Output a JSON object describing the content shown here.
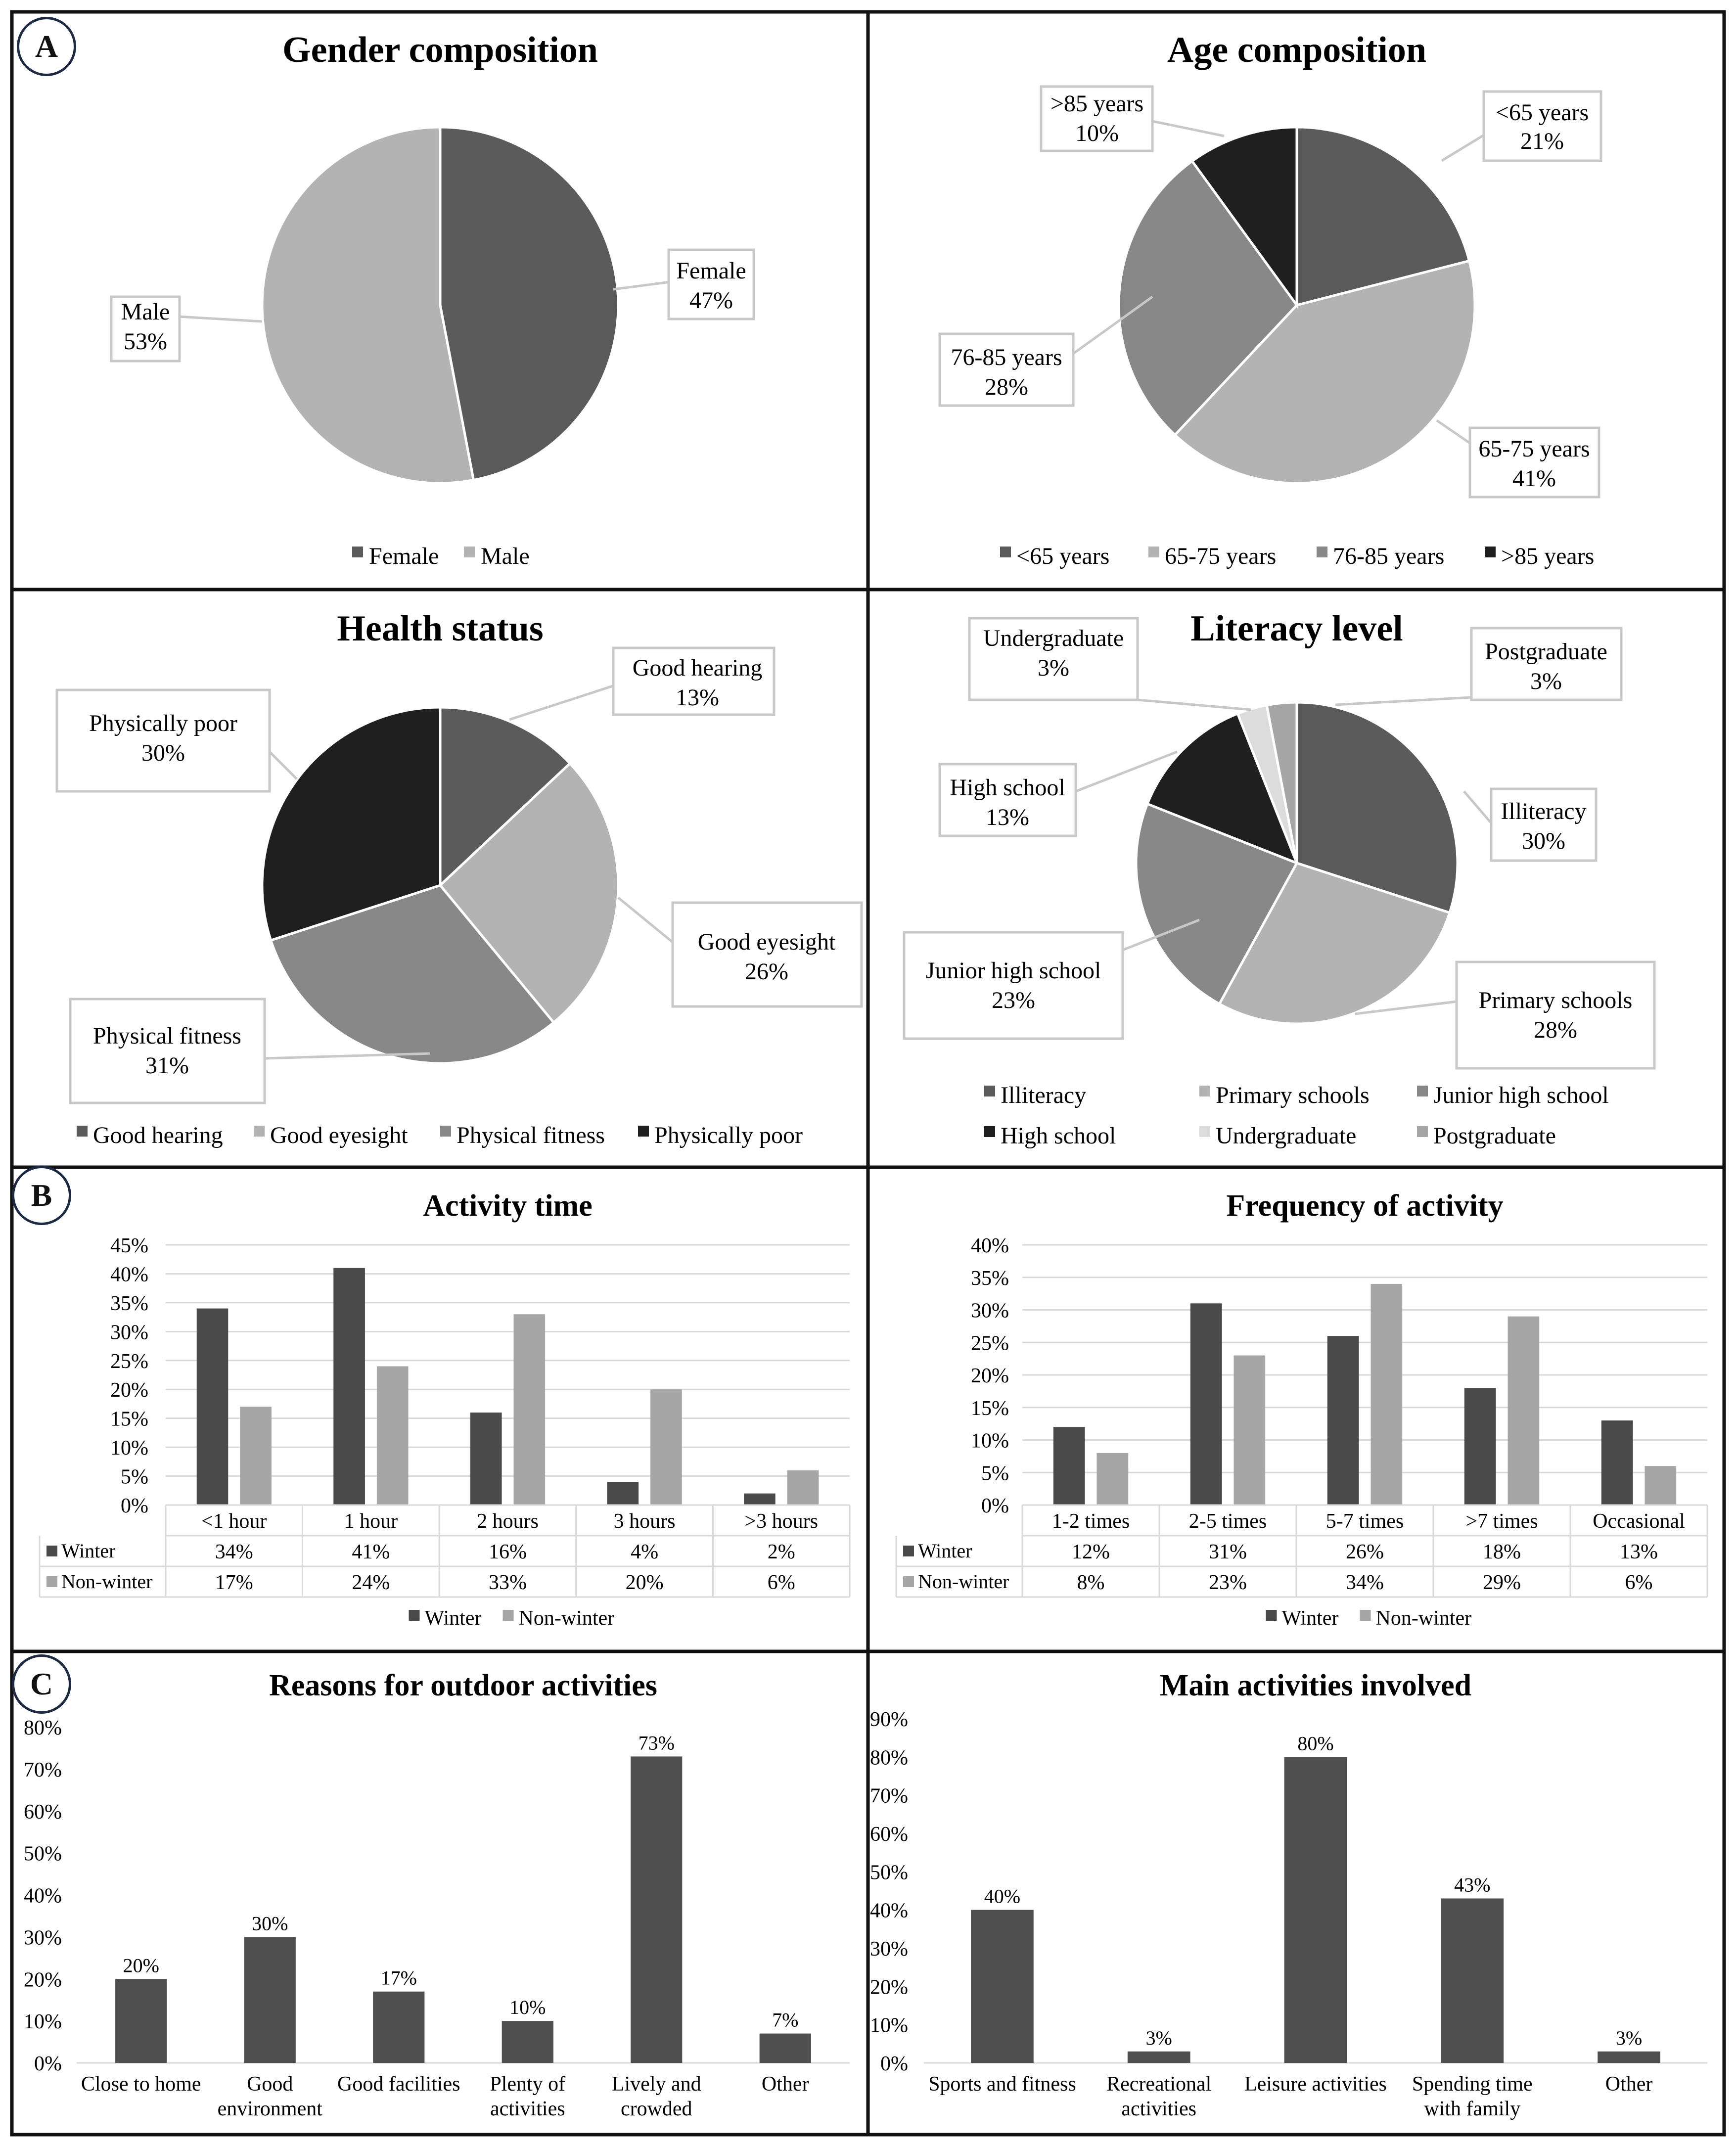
{
  "panel_labels": [
    "A",
    "B",
    "C"
  ],
  "chart_data": [
    {
      "type": "pie",
      "title": "Gender composition",
      "slices": [
        {
          "label": "Female",
          "value": 47,
          "color": "#5b5b5b"
        },
        {
          "label": "Male",
          "value": 53,
          "color": "#b3b3b3"
        }
      ],
      "legend": [
        "Female",
        "Male"
      ]
    },
    {
      "type": "pie",
      "title": "Age composition",
      "slices": [
        {
          "label": "<65 years",
          "value": 21,
          "color": "#5b5b5b"
        },
        {
          "label": "65-75 years",
          "value": 41,
          "color": "#b3b3b3"
        },
        {
          "label": "76-85 years",
          "value": 28,
          "color": "#888888"
        },
        {
          "label": ">85 years",
          "value": 10,
          "color": "#1f1f1f"
        }
      ],
      "legend": [
        "<65 years",
        "65-75 years",
        "76-85 years",
        ">85 years"
      ]
    },
    {
      "type": "pie",
      "title": "Health status",
      "slices": [
        {
          "label": "Good hearing",
          "value": 13,
          "color": "#5b5b5b"
        },
        {
          "label": "Good eyesight",
          "value": 26,
          "color": "#b3b3b3"
        },
        {
          "label": "Physical fitness",
          "value": 31,
          "color": "#888888"
        },
        {
          "label": "Physically poor",
          "value": 30,
          "color": "#1f1f1f"
        }
      ],
      "legend": [
        "Good hearing",
        "Good eyesight",
        "Physical fitness",
        "Physically poor"
      ]
    },
    {
      "type": "pie",
      "title": "Literacy level",
      "slices": [
        {
          "label": "Illiteracy",
          "value": 30,
          "color": "#5b5b5b"
        },
        {
          "label": "Primary schools",
          "value": 28,
          "color": "#b3b3b3"
        },
        {
          "label": "Junior high school",
          "value": 23,
          "color": "#888888"
        },
        {
          "label": "High school",
          "value": 13,
          "color": "#1f1f1f"
        },
        {
          "label": "Undergraduate",
          "value": 3,
          "color": "#dcdcdc"
        },
        {
          "label": "Postgraduate",
          "value": 3,
          "color": "#a6a6a6"
        }
      ],
      "legend": [
        "Illiteracy",
        "Primary schools",
        "Junior high school",
        "High school",
        "Undergraduate",
        "Postgraduate"
      ]
    },
    {
      "type": "bar",
      "title": "Activity time",
      "categories": [
        "<1 hour",
        "1 hour",
        "2 hours",
        "3 hours",
        ">3 hours"
      ],
      "series": [
        {
          "name": "Winter",
          "values": [
            34,
            41,
            16,
            4,
            2
          ],
          "color": "#4a4a4a"
        },
        {
          "name": "Non-winter",
          "values": [
            17,
            24,
            33,
            20,
            6
          ],
          "color": "#a6a6a6"
        }
      ],
      "ylim": [
        0,
        45
      ],
      "yticks": [
        "0%",
        "5%",
        "10%",
        "15%",
        "20%",
        "25%",
        "30%",
        "35%",
        "40%",
        "45%"
      ],
      "table_values": {
        "Winter": [
          "34%",
          "41%",
          "16%",
          "4%",
          "2%"
        ],
        "Non-winter": [
          "17%",
          "24%",
          "33%",
          "20%",
          "6%"
        ]
      },
      "legend": [
        "Winter",
        "Non-winter"
      ]
    },
    {
      "type": "bar",
      "title": "Frequency of activity",
      "categories": [
        "1-2 times",
        "2-5 times",
        "5-7 times",
        ">7 times",
        "Occasional"
      ],
      "series": [
        {
          "name": "Winter",
          "values": [
            12,
            31,
            26,
            18,
            13
          ],
          "color": "#4a4a4a"
        },
        {
          "name": "Non-winter",
          "values": [
            8,
            23,
            34,
            29,
            6
          ],
          "color": "#a6a6a6"
        }
      ],
      "ylim": [
        0,
        40
      ],
      "yticks": [
        "0%",
        "5%",
        "10%",
        "15%",
        "20%",
        "25%",
        "30%",
        "35%",
        "40%"
      ],
      "table_values": {
        "Winter": [
          "12%",
          "31%",
          "26%",
          "18%",
          "13%"
        ],
        "Non-winter": [
          "8%",
          "23%",
          "34%",
          "29%",
          "6%"
        ]
      },
      "legend": [
        "Winter",
        "Non-winter"
      ]
    },
    {
      "type": "bar",
      "title": "Reasons for outdoor activities",
      "categories": [
        "Close to home",
        "Good environment",
        "Good facilities",
        "Plenty of activities",
        "Lively and crowded",
        "Other"
      ],
      "category_lines": [
        [
          "Close to home"
        ],
        [
          "Good",
          "environment"
        ],
        [
          "Good facilities"
        ],
        [
          "Plenty of",
          "activities"
        ],
        [
          "Lively and",
          "crowded"
        ],
        [
          "Other"
        ]
      ],
      "values": [
        20,
        30,
        17,
        10,
        73,
        7
      ],
      "data_labels": [
        "20%",
        "30%",
        "17%",
        "10%",
        "73%",
        "7%"
      ],
      "color": "#4f4f4f",
      "ylim": [
        0,
        80
      ],
      "yticks": [
        "0%",
        "10%",
        "20%",
        "30%",
        "40%",
        "50%",
        "60%",
        "70%",
        "80%"
      ]
    },
    {
      "type": "bar",
      "title": "Main activities involved",
      "categories": [
        "Sports and fitness",
        "Recreational activities",
        "Leisure activities",
        "Spending time with family",
        "Other"
      ],
      "category_lines": [
        [
          "Sports and fitness"
        ],
        [
          "Recreational",
          "activities"
        ],
        [
          "Leisure activities"
        ],
        [
          "Spending time",
          "with family"
        ],
        [
          "Other"
        ]
      ],
      "values": [
        40,
        3,
        80,
        43,
        3
      ],
      "data_labels": [
        "40%",
        "3%",
        "80%",
        "43%",
        "3%"
      ],
      "color": "#4f4f4f",
      "ylim": [
        0,
        90
      ],
      "yticks": [
        "0%",
        "10%",
        "20%",
        "30%",
        "40%",
        "50%",
        "60%",
        "70%",
        "80%",
        "90%"
      ]
    }
  ]
}
